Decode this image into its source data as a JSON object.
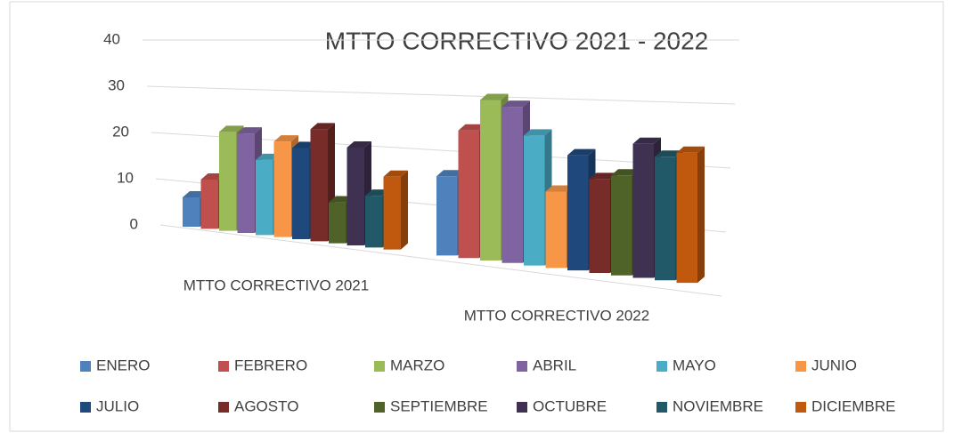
{
  "chart_data": {
    "type": "bar3d",
    "title": "MTTO CORRECTIVO 2021 - 2022",
    "categories": [
      "MTTO CORRECTIVO 2021",
      "MTTO CORRECTIVO 2022"
    ],
    "series": [
      {
        "name": "ENERO",
        "color": "#4f81bd",
        "values": [
          6,
          15
        ]
      },
      {
        "name": "FEBRERO",
        "color": "#c0504d",
        "values": [
          10,
          24
        ]
      },
      {
        "name": "MARZO",
        "color": "#9bbb59",
        "values": [
          20,
          30
        ]
      },
      {
        "name": "ABRIL",
        "color": "#8064a2",
        "values": [
          20,
          29
        ]
      },
      {
        "name": "MAYO",
        "color": "#4bacc6",
        "values": [
          15,
          24
        ]
      },
      {
        "name": "JUNIO",
        "color": "#f79646",
        "values": [
          19,
          14
        ]
      },
      {
        "name": "JULIO",
        "color": "#1f497d",
        "values": [
          18,
          21
        ]
      },
      {
        "name": "AGOSTO",
        "color": "#772c2a",
        "values": [
          22,
          17
        ]
      },
      {
        "name": "SEPTIEMBRE",
        "color": "#4f6228",
        "values": [
          8,
          18
        ]
      },
      {
        "name": "OCTUBRE",
        "color": "#3f3151",
        "values": [
          19,
          24
        ]
      },
      {
        "name": "NOVIEMBRE",
        "color": "#215968",
        "values": [
          10,
          22
        ]
      },
      {
        "name": "DICIEMBRE",
        "color": "#c0580e",
        "values": [
          14,
          23
        ]
      }
    ],
    "ylim": [
      0,
      40
    ],
    "yticks": [
      0,
      10,
      20,
      30,
      40
    ],
    "grid": true,
    "legend": "bottom"
  }
}
